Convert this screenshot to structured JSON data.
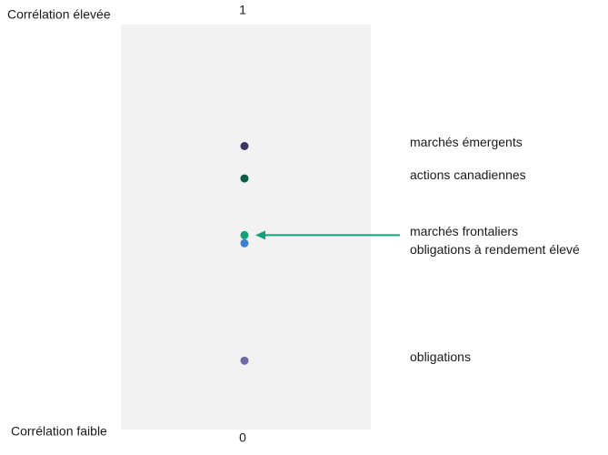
{
  "chart_data": {
    "type": "strip",
    "annotations": [
      "Corrélation élevée",
      "Corrélation faible"
    ],
    "ylim": [
      0,
      1
    ],
    "yticks": [
      0,
      1
    ],
    "series": [
      {
        "name": "marchés émergents",
        "color": "#3a3566",
        "values": [
          0.7
        ]
      },
      {
        "name": "actions canadiennes",
        "color": "#0b5e45",
        "values": [
          0.62
        ]
      },
      {
        "name": "marchés frontaliers",
        "color": "#14a07a",
        "values": [
          0.48
        ]
      },
      {
        "name": "obligations à rendement élevé",
        "color": "#3f7fcf",
        "values": [
          0.46
        ]
      },
      {
        "name": "obligations",
        "color": "#6b6aa8",
        "values": [
          0.17
        ]
      }
    ],
    "arrow_color": "#14a07a"
  }
}
